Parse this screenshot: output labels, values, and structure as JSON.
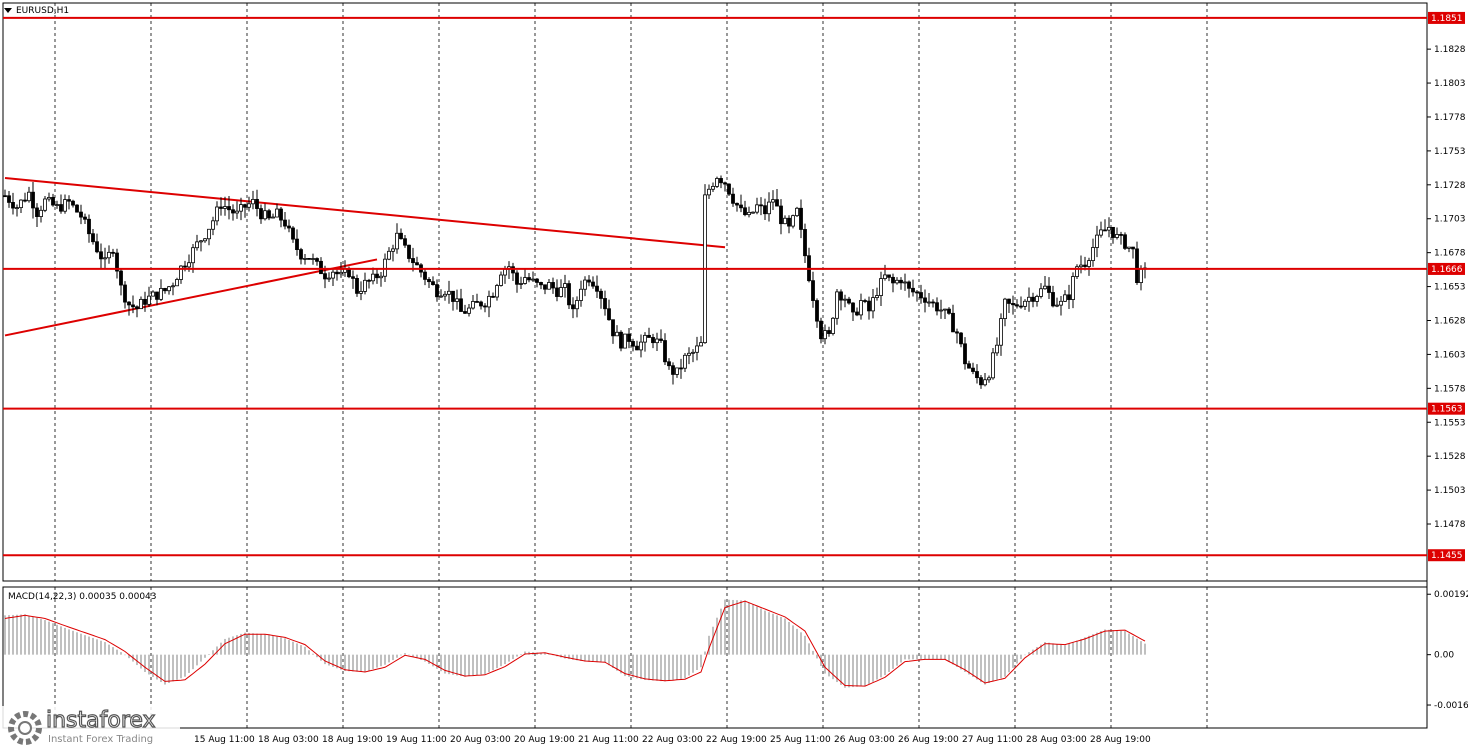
{
  "window": {
    "title": "EURUSD,H1"
  },
  "colors": {
    "level": "#dd0000",
    "candle": "#000000",
    "macd_hist": "#c0c0c0",
    "macd_signal": "#dd0000",
    "grid": "#000000"
  },
  "chart_data": [
    {
      "type": "candlestick",
      "symbol": "EURUSD",
      "timeframe": "H1",
      "title": "EURUSD,H1",
      "ylim": [
        1.1436,
        1.1862
      ],
      "y_ticks": [
        "1.1828",
        "1.1803",
        "1.1778",
        "1.1753",
        "1.1728",
        "1.1703",
        "1.1678",
        "1.1653",
        "1.1628",
        "1.1603",
        "1.1578",
        "1.1553",
        "1.1528",
        "1.1503",
        "1.1478"
      ],
      "x_ticks": [
        "15 Aug 11:00",
        "18 Aug 03:00",
        "18 Aug 19:00",
        "19 Aug 11:00",
        "20 Aug 03:00",
        "20 Aug 19:00",
        "21 Aug 11:00",
        "22 Aug 03:00",
        "22 Aug 19:00",
        "25 Aug 11:00",
        "26 Aug 03:00",
        "26 Aug 19:00",
        "27 Aug 11:00",
        "28 Aug 03:00",
        "28 Aug 19:00"
      ],
      "grid": "dashed-vertical",
      "levels": [
        {
          "price": 1.1851,
          "label": "1.1851"
        },
        {
          "price": 1.1666,
          "label": "1.1666"
        },
        {
          "price": 1.1563,
          "label": "1.1563"
        },
        {
          "price": 1.1455,
          "label": "1.1455"
        }
      ],
      "trendlines": [
        {
          "from": [
            0,
            1.1733
          ],
          "to": [
            180,
            1.1682
          ]
        },
        {
          "from": [
            0,
            1.1617
          ],
          "to": [
            93,
            1.1673
          ]
        }
      ],
      "close_path": [
        [
          0,
          1.172
        ],
        [
          3,
          1.1712
        ],
        [
          6,
          1.1722
        ],
        [
          8,
          1.1708
        ],
        [
          10,
          1.1716
        ],
        [
          13,
          1.1711
        ],
        [
          16,
          1.1715
        ],
        [
          19,
          1.1705
        ],
        [
          21,
          1.1692
        ],
        [
          23,
          1.1681
        ],
        [
          25,
          1.167
        ],
        [
          27,
          1.1682
        ],
        [
          29,
          1.1652
        ],
        [
          31,
          1.164
        ],
        [
          33,
          1.1637
        ],
        [
          35,
          1.1643
        ],
        [
          37,
          1.1646
        ],
        [
          40,
          1.165
        ],
        [
          42,
          1.1656
        ],
        [
          44,
          1.1667
        ],
        [
          46,
          1.1675
        ],
        [
          48,
          1.1684
        ],
        [
          50,
          1.1692
        ],
        [
          52,
          1.1702
        ],
        [
          54,
          1.1714
        ],
        [
          56,
          1.171
        ],
        [
          58,
          1.1706
        ],
        [
          60,
          1.1712
        ],
        [
          62,
          1.1715
        ],
        [
          64,
          1.1707
        ],
        [
          66,
          1.1702
        ],
        [
          68,
          1.1706
        ],
        [
          70,
          1.17
        ],
        [
          72,
          1.1685
        ],
        [
          74,
          1.1677
        ],
        [
          76,
          1.1675
        ],
        [
          78,
          1.1668
        ],
        [
          80,
          1.1662
        ],
        [
          82,
          1.1665
        ],
        [
          84,
          1.166
        ],
        [
          86,
          1.1664
        ],
        [
          88,
          1.165
        ],
        [
          90,
          1.1655
        ],
        [
          92,
          1.1658
        ],
        [
          94,
          1.1664
        ],
        [
          96,
          1.1678
        ],
        [
          98,
          1.169
        ],
        [
          100,
          1.168
        ],
        [
          102,
          1.1672
        ],
        [
          104,
          1.1664
        ],
        [
          106,
          1.1656
        ],
        [
          108,
          1.165
        ],
        [
          110,
          1.1651
        ],
        [
          112,
          1.1645
        ],
        [
          114,
          1.1634
        ],
        [
          116,
          1.1636
        ],
        [
          118,
          1.164
        ],
        [
          120,
          1.1642
        ],
        [
          122,
          1.1649
        ],
        [
          124,
          1.1665
        ],
        [
          126,
          1.1668
        ],
        [
          128,
          1.1655
        ],
        [
          130,
          1.166
        ],
        [
          132,
          1.1656
        ],
        [
          134,
          1.1652
        ],
        [
          136,
          1.1654
        ],
        [
          138,
          1.165
        ],
        [
          140,
          1.1651
        ],
        [
          142,
          1.1633
        ],
        [
          144,
          1.1654
        ],
        [
          146,
          1.166
        ],
        [
          148,
          1.1654
        ],
        [
          150,
          1.1639
        ],
        [
          152,
          1.162
        ],
        [
          154,
          1.1612
        ],
        [
          156,
          1.1615
        ],
        [
          158,
          1.161
        ],
        [
          160,
          1.1613
        ],
        [
          162,
          1.1615
        ],
        [
          164,
          1.1609
        ],
        [
          166,
          1.1592
        ],
        [
          168,
          1.1589
        ],
        [
          170,
          1.16
        ],
        [
          172,
          1.1604
        ],
        [
          174,
          1.161
        ],
        [
          175,
          1.1718
        ],
        [
          176,
          1.1725
        ],
        [
          178,
          1.1735
        ],
        [
          180,
          1.173
        ],
        [
          182,
          1.1718
        ],
        [
          184,
          1.1708
        ],
        [
          186,
          1.1704
        ],
        [
          188,
          1.1712
        ],
        [
          190,
          1.1708
        ],
        [
          192,
          1.1718
        ],
        [
          194,
          1.1703
        ],
        [
          196,
          1.1695
        ],
        [
          198,
          1.1708
        ],
        [
          200,
          1.1676
        ],
        [
          202,
          1.1646
        ],
        [
          204,
          1.1618
        ],
        [
          206,
          1.1616
        ],
        [
          208,
          1.165
        ],
        [
          210,
          1.1645
        ],
        [
          212,
          1.163
        ],
        [
          214,
          1.1642
        ],
        [
          216,
          1.1635
        ],
        [
          218,
          1.165
        ],
        [
          220,
          1.166
        ],
        [
          222,
          1.1655
        ],
        [
          224,
          1.1659
        ],
        [
          226,
          1.165
        ],
        [
          228,
          1.1648
        ],
        [
          230,
          1.1645
        ],
        [
          232,
          1.164
        ],
        [
          234,
          1.1636
        ],
        [
          236,
          1.1629
        ],
        [
          238,
          1.1619
        ],
        [
          240,
          1.1598
        ],
        [
          242,
          1.1588
        ],
        [
          244,
          1.1583
        ],
        [
          246,
          1.159
        ],
        [
          248,
          1.161
        ],
        [
          250,
          1.164
        ],
        [
          252,
          1.1638
        ],
        [
          254,
          1.1642
        ],
        [
          256,
          1.1645
        ],
        [
          258,
          1.1648
        ],
        [
          260,
          1.1652
        ],
        [
          262,
          1.1643
        ],
        [
          264,
          1.164
        ],
        [
          266,
          1.1647
        ],
        [
          268,
          1.1668
        ],
        [
          270,
          1.1671
        ],
        [
          272,
          1.1682
        ],
        [
          274,
          1.1692
        ],
        [
          276,
          1.1697
        ],
        [
          278,
          1.1689
        ],
        [
          280,
          1.1685
        ],
        [
          282,
          1.1679
        ],
        [
          283,
          1.166
        ],
        [
          285,
          1.1663
        ]
      ]
    },
    {
      "type": "histogram-with-signal",
      "title": "MACD(14,22,3) 0.00035 0.00043",
      "ylim": [
        -0.00233,
        0.00215
      ],
      "y_ticks": [
        "0.00192",
        "0.00",
        "-0.0016"
      ],
      "series": [
        {
          "name": "MACD",
          "kind": "histogram",
          "points": [
            [
              0,
              0.00125
            ],
            [
              5,
              0.00128
            ],
            [
              10,
              0.0011
            ],
            [
              15,
              0.00085
            ],
            [
              20,
              0.00062
            ],
            [
              25,
              0.0004
            ],
            [
              30,
              0.0
            ],
            [
              35,
              -0.00055
            ],
            [
              40,
              -0.00095
            ],
            [
              45,
              -0.0007
            ],
            [
              50,
              -0.0001
            ],
            [
              55,
              0.0005
            ],
            [
              60,
              0.0007
            ],
            [
              65,
              0.00065
            ],
            [
              70,
              0.00052
            ],
            [
              75,
              0.00025
            ],
            [
              80,
              -0.0003
            ],
            [
              85,
              -0.00052
            ],
            [
              90,
              -0.00055
            ],
            [
              95,
              -0.00032
            ],
            [
              100,
              5e-05
            ],
            [
              105,
              -0.00022
            ],
            [
              110,
              -0.0006
            ],
            [
              115,
              -0.0007
            ],
            [
              120,
              -0.00062
            ],
            [
              125,
              -0.0003
            ],
            [
              130,
              0.0001
            ],
            [
              135,
              5e-05
            ],
            [
              140,
              -0.00012
            ],
            [
              145,
              -0.00022
            ],
            [
              150,
              -0.00025
            ],
            [
              155,
              -0.00068
            ],
            [
              160,
              -0.0008
            ],
            [
              165,
              -0.00085
            ],
            [
              170,
              -0.00075
            ],
            [
              174,
              -0.0004
            ],
            [
              176,
              0.0006
            ],
            [
              180,
              0.00175
            ],
            [
              185,
              0.00172
            ],
            [
              190,
              0.0014
            ],
            [
              195,
              0.00115
            ],
            [
              200,
              0.0006
            ],
            [
              205,
              -0.0006
            ],
            [
              210,
              -0.00105
            ],
            [
              215,
              -0.001
            ],
            [
              220,
              -0.00065
            ],
            [
              225,
              -0.00015
            ],
            [
              230,
              -0.00015
            ],
            [
              235,
              -0.00015
            ],
            [
              240,
              -0.00055
            ],
            [
              245,
              -0.00095
            ],
            [
              250,
              -0.0007
            ],
            [
              255,
              0.0
            ],
            [
              260,
              0.0004
            ],
            [
              265,
              0.0003
            ],
            [
              270,
              0.00055
            ],
            [
              275,
              0.0008
            ],
            [
              280,
              0.00075
            ],
            [
              285,
              0.00035
            ]
          ]
        },
        {
          "name": "Signal",
          "kind": "line",
          "points": [
            [
              0,
              0.00115
            ],
            [
              5,
              0.00125
            ],
            [
              10,
              0.00115
            ],
            [
              15,
              0.00092
            ],
            [
              20,
              0.0007
            ],
            [
              25,
              0.00048
            ],
            [
              30,
              0.0001
            ],
            [
              35,
              -0.0004
            ],
            [
              40,
              -0.00085
            ],
            [
              45,
              -0.0008
            ],
            [
              50,
              -0.0003
            ],
            [
              55,
              0.00035
            ],
            [
              60,
              0.00065
            ],
            [
              65,
              0.00065
            ],
            [
              70,
              0.00055
            ],
            [
              75,
              0.00032
            ],
            [
              80,
              -0.0002
            ],
            [
              85,
              -0.00048
            ],
            [
              90,
              -0.00055
            ],
            [
              95,
              -0.0004
            ],
            [
              100,
              -2e-05
            ],
            [
              105,
              -0.00015
            ],
            [
              110,
              -0.0005
            ],
            [
              115,
              -0.00068
            ],
            [
              120,
              -0.00064
            ],
            [
              125,
              -0.00038
            ],
            [
              130,
              2e-05
            ],
            [
              135,
              6e-05
            ],
            [
              140,
              -8e-05
            ],
            [
              145,
              -0.0002
            ],
            [
              150,
              -0.00024
            ],
            [
              155,
              -0.0006
            ],
            [
              160,
              -0.00077
            ],
            [
              165,
              -0.00083
            ],
            [
              170,
              -0.00078
            ],
            [
              174,
              -0.00055
            ],
            [
              176,
              0.0002
            ],
            [
              180,
              0.0015
            ],
            [
              185,
              0.0017
            ],
            [
              190,
              0.00145
            ],
            [
              195,
              0.0012
            ],
            [
              200,
              0.00075
            ],
            [
              205,
              -0.0004
            ],
            [
              210,
              -0.00098
            ],
            [
              215,
              -0.001
            ],
            [
              220,
              -0.00072
            ],
            [
              225,
              -0.00022
            ],
            [
              230,
              -0.00015
            ],
            [
              235,
              -0.00015
            ],
            [
              240,
              -0.00048
            ],
            [
              245,
              -0.0009
            ],
            [
              250,
              -0.00075
            ],
            [
              255,
              -0.0001
            ],
            [
              260,
              0.00035
            ],
            [
              265,
              0.00032
            ],
            [
              270,
              0.0005
            ],
            [
              275,
              0.00075
            ],
            [
              280,
              0.00078
            ],
            [
              285,
              0.00043
            ]
          ]
        }
      ]
    }
  ],
  "watermark": {
    "brand": "instaforex",
    "tagline": "Instant Forex Trading"
  }
}
